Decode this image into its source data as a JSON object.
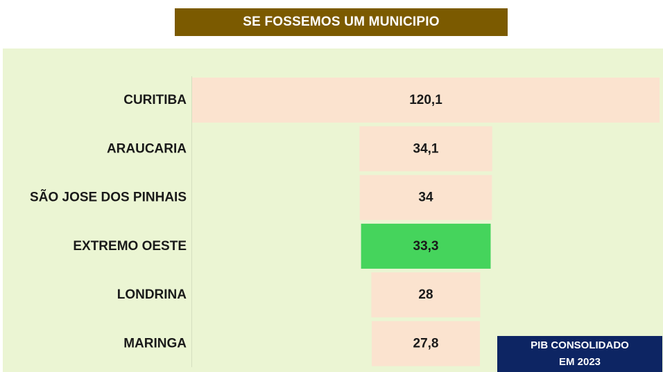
{
  "title": "SE FOSSEMOS UM MUNICIPIO",
  "note": {
    "line1": "PIB CONSOLIDADO",
    "line2": "EM 2023"
  },
  "colors": {
    "title_bg": "#7b5a00",
    "panel_bg": "#ebf5d3",
    "bar_default": "#fbe3cf",
    "bar_highlight": "#45d45c",
    "note_bg": "#0d2563"
  },
  "chart_data": {
    "type": "bar",
    "orientation": "horizontal-funnel",
    "title": "SE FOSSEMOS UM MUNICIPIO",
    "categories": [
      "CURITIBA",
      "ARAUCARIA",
      "SÃO JOSE DOS PINHAIS",
      "EXTREMO OESTE",
      "LONDRINA",
      "MARINGA"
    ],
    "values": [
      120.1,
      34.1,
      34,
      33.3,
      28,
      27.8
    ],
    "value_labels": [
      "120,1",
      "34,1",
      "34",
      "33,3",
      "28",
      "27,8"
    ],
    "highlight": "EXTREMO OESTE",
    "xlabel": "",
    "ylabel": ""
  }
}
